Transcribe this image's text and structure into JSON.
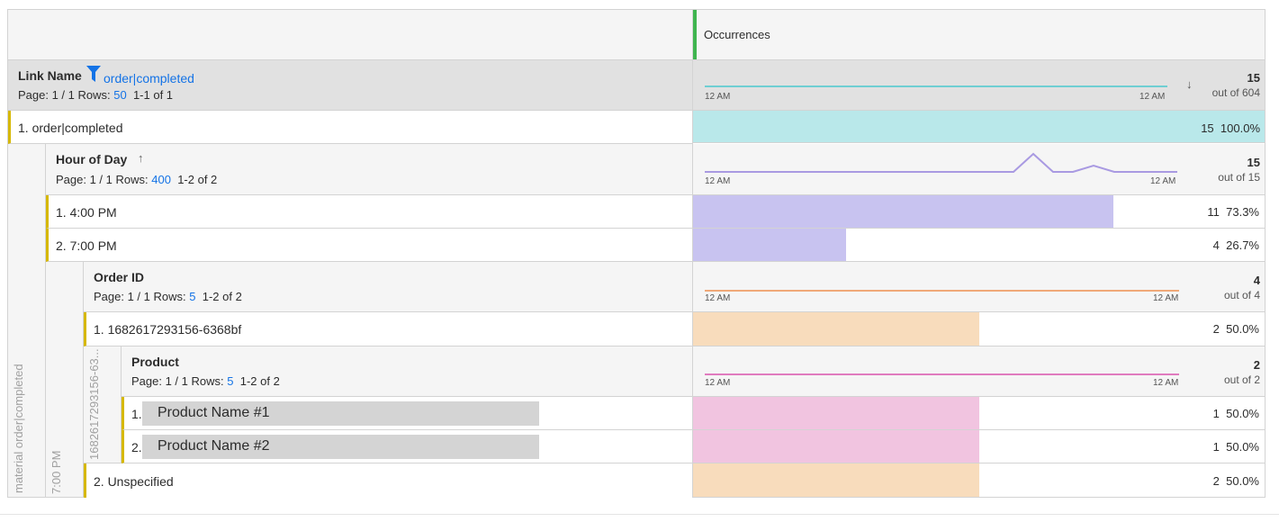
{
  "column": {
    "title": "Occurrences",
    "accent": "#3fb54f"
  },
  "link": {
    "title": "Link Name",
    "filter": "order|completed",
    "page": "Page: 1 / 1 Rows:",
    "rows": "50",
    "range": "1-1 of 1",
    "total": "15",
    "out_of": "out of 604",
    "tick_start": "12 AM",
    "tick_end": "12 AM",
    "color": "#6fcfd3",
    "sort": "down"
  },
  "row1": {
    "label": "1.  order|completed",
    "value": "15",
    "pct": "100.0%",
    "fraction": 1.0,
    "color": "#b9e8ea"
  },
  "hour": {
    "title": "Hour of Day",
    "page": "Page: 1 / 1 Rows:",
    "rows": "400",
    "range": "1-2 of 2",
    "total": "15",
    "out_of": "out of 15",
    "tick_start": "12 AM",
    "tick_end": "12 AM",
    "color": "#a99ae2",
    "sort": "up",
    "rows_data": [
      {
        "label": "1.  4:00 PM",
        "value": "11",
        "pct": "73.3%",
        "fraction": 0.733
      },
      {
        "label": "2.  7:00 PM",
        "value": "4",
        "pct": "26.7%",
        "fraction": 0.267
      }
    ],
    "bar_color": "#c8c3f0"
  },
  "order": {
    "title": "Order ID",
    "page": "Page: 1 / 1 Rows:",
    "rows": "5",
    "range": "1-2 of 2",
    "total": "4",
    "out_of": "out of 4",
    "tick_start": "12 AM",
    "tick_end": "12 AM",
    "color": "#f0a979",
    "bar_color": "#f8dcbc",
    "rows_data": [
      {
        "label": "1.  1682617293156-6368bf",
        "value": "2",
        "pct": "50.0%",
        "fraction": 0.5
      },
      {
        "label": "2.  Unspecified",
        "value": "2",
        "pct": "50.0%",
        "fraction": 0.5
      }
    ]
  },
  "product": {
    "title": "Product",
    "page": "Page: 1 / 1 Rows:",
    "rows": "5",
    "range": "1-2 of 2",
    "total": "2",
    "out_of": "out of 2",
    "tick_start": "12 AM",
    "tick_end": "12 AM",
    "color": "#e07bbf",
    "bar_color": "#f1c4e0",
    "rows_data": [
      {
        "num": "1.",
        "name": "Product Name #1",
        "value": "1",
        "pct": "50.0%",
        "fraction": 0.5
      },
      {
        "num": "2.",
        "name": "Product Name #2",
        "value": "1",
        "pct": "50.0%",
        "fraction": 0.5
      }
    ]
  },
  "strips": {
    "level1": "material order|completed",
    "level2": "7:00 PM",
    "level3": "1682617293156-63..."
  }
}
